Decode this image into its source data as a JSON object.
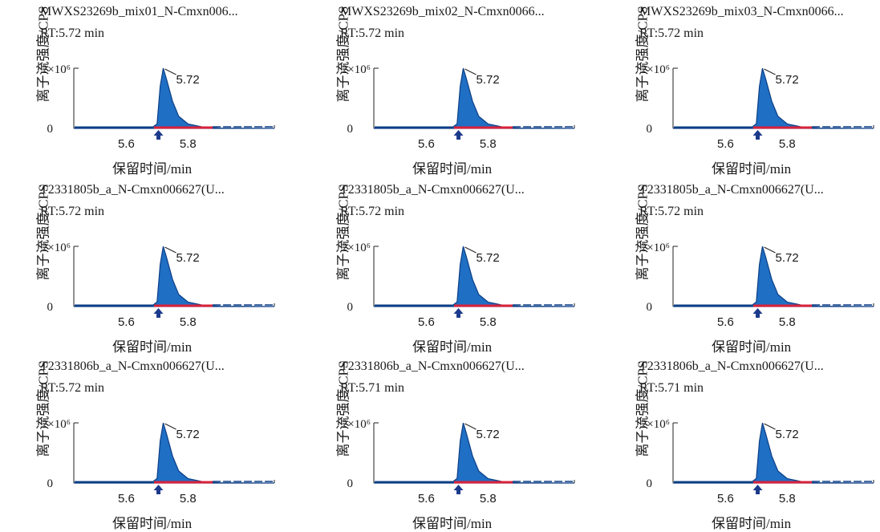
{
  "colors": {
    "peak_fill": "#1f6fc4",
    "peak_edge": "#0d3f86",
    "baseline": "#d9223a",
    "arrow": "#1b3a8c",
    "axis": "#222222"
  },
  "chart_data": [
    {
      "type": "area",
      "title": "MWXS23269b_mix01_N-Cmxn006...",
      "rt_label": "RT:5.72 min",
      "xlabel": "保留时间/min",
      "ylabel": "离子流强度/CPS",
      "x_ticks": [
        "5.6",
        "5.8"
      ],
      "y_ticks": [
        "0",
        "2×10⁶"
      ],
      "xlim": [
        5.43,
        6.08
      ],
      "ylim": [
        0,
        2000000
      ],
      "peak": {
        "apex_x": 5.72,
        "apex_y": 2000000,
        "label": "5.72"
      },
      "series": [
        {
          "x": [
            5.43,
            5.68,
            5.7,
            5.71,
            5.72,
            5.73,
            5.75,
            5.77,
            5.8,
            5.85,
            5.9,
            6.08
          ],
          "values": [
            0,
            0,
            150000,
            1400000,
            2000000,
            1650000,
            900000,
            400000,
            150000,
            40000,
            10000,
            0
          ]
        }
      ]
    },
    {
      "type": "area",
      "title": "MWXS23269b_mix02_N-Cmxn0066...",
      "rt_label": "RT:5.72 min",
      "xlabel": "保留时间/min",
      "ylabel": "离子流强度/CPS",
      "x_ticks": [
        "5.6",
        "5.8"
      ],
      "y_ticks": [
        "0",
        "2×10⁶"
      ],
      "xlim": [
        5.43,
        6.08
      ],
      "ylim": [
        0,
        2000000
      ],
      "peak": {
        "apex_x": 5.72,
        "apex_y": 2000000,
        "label": "5.72"
      },
      "series": [
        {
          "x": [
            5.43,
            5.68,
            5.7,
            5.71,
            5.72,
            5.73,
            5.75,
            5.77,
            5.8,
            5.85,
            5.9,
            6.08
          ],
          "values": [
            0,
            0,
            150000,
            1400000,
            2000000,
            1650000,
            900000,
            400000,
            150000,
            40000,
            10000,
            0
          ]
        }
      ]
    },
    {
      "type": "area",
      "title": "MWXS23269b_mix03_N-Cmxn0066...",
      "rt_label": "RT:5.72 min",
      "xlabel": "保留时间/min",
      "ylabel": "离子流强度/CPS",
      "x_ticks": [
        "5.6",
        "5.8"
      ],
      "y_ticks": [
        "0",
        "2×10⁶"
      ],
      "xlim": [
        5.43,
        6.08
      ],
      "ylim": [
        0,
        2000000
      ],
      "peak": {
        "apex_x": 5.72,
        "apex_y": 2000000,
        "label": "5.72"
      },
      "series": [
        {
          "x": [
            5.43,
            5.68,
            5.7,
            5.71,
            5.72,
            5.73,
            5.75,
            5.77,
            5.8,
            5.85,
            5.9,
            6.08
          ],
          "values": [
            0,
            0,
            150000,
            1400000,
            2000000,
            1650000,
            900000,
            400000,
            150000,
            40000,
            10000,
            0
          ]
        }
      ]
    },
    {
      "type": "area",
      "title": "T2331805b_a_N-Cmxn006627(U...",
      "rt_label": "RT:5.72 min",
      "xlabel": "保留时间/min",
      "ylabel": "离子流强度/CPS",
      "x_ticks": [
        "5.6",
        "5.8"
      ],
      "y_ticks": [
        "0",
        "2×10⁶"
      ],
      "xlim": [
        5.43,
        6.08
      ],
      "ylim": [
        0,
        2000000
      ],
      "peak": {
        "apex_x": 5.72,
        "apex_y": 2000000,
        "label": "5.72"
      },
      "series": [
        {
          "x": [
            5.43,
            5.68,
            5.7,
            5.71,
            5.72,
            5.73,
            5.75,
            5.77,
            5.8,
            5.85,
            5.9,
            6.08
          ],
          "values": [
            0,
            0,
            150000,
            1400000,
            2000000,
            1650000,
            900000,
            400000,
            150000,
            40000,
            10000,
            0
          ]
        }
      ]
    },
    {
      "type": "area",
      "title": "T2331805b_a_N-Cmxn006627(U...",
      "rt_label": "RT:5.72 min",
      "xlabel": "保留时间/min",
      "ylabel": "离子流强度/CPS",
      "x_ticks": [
        "5.6",
        "5.8"
      ],
      "y_ticks": [
        "0",
        "2×10⁶"
      ],
      "xlim": [
        5.43,
        6.08
      ],
      "ylim": [
        0,
        2000000
      ],
      "peak": {
        "apex_x": 5.72,
        "apex_y": 2000000,
        "label": "5.72"
      },
      "series": [
        {
          "x": [
            5.43,
            5.68,
            5.7,
            5.71,
            5.72,
            5.73,
            5.75,
            5.77,
            5.8,
            5.85,
            5.9,
            6.08
          ],
          "values": [
            0,
            0,
            150000,
            1400000,
            2000000,
            1650000,
            900000,
            400000,
            150000,
            40000,
            10000,
            0
          ]
        }
      ]
    },
    {
      "type": "area",
      "title": "T2331805b_a_N-Cmxn006627(U...",
      "rt_label": "RT:5.72 min",
      "xlabel": "保留时间/min",
      "ylabel": "离子流强度/CPS",
      "x_ticks": [
        "5.6",
        "5.8"
      ],
      "y_ticks": [
        "0",
        "2×10⁶"
      ],
      "xlim": [
        5.43,
        6.08
      ],
      "ylim": [
        0,
        2000000
      ],
      "peak": {
        "apex_x": 5.72,
        "apex_y": 2000000,
        "label": "5.72"
      },
      "series": [
        {
          "x": [
            5.43,
            5.68,
            5.7,
            5.71,
            5.72,
            5.73,
            5.75,
            5.77,
            5.8,
            5.85,
            5.9,
            6.08
          ],
          "values": [
            0,
            0,
            150000,
            1400000,
            2000000,
            1650000,
            900000,
            400000,
            150000,
            40000,
            10000,
            0
          ]
        }
      ]
    },
    {
      "type": "area",
      "title": "T2331806b_a_N-Cmxn006627(U...",
      "rt_label": "RT:5.72 min",
      "xlabel": "保留时间/min",
      "ylabel": "离子流强度/CPS",
      "x_ticks": [
        "5.6",
        "5.8"
      ],
      "y_ticks": [
        "0",
        "2×10⁶"
      ],
      "xlim": [
        5.43,
        6.08
      ],
      "ylim": [
        0,
        2000000
      ],
      "peak": {
        "apex_x": 5.72,
        "apex_y": 2000000,
        "label": "5.72"
      },
      "series": [
        {
          "x": [
            5.43,
            5.68,
            5.7,
            5.71,
            5.72,
            5.73,
            5.75,
            5.77,
            5.8,
            5.85,
            5.9,
            6.08
          ],
          "values": [
            0,
            0,
            150000,
            1400000,
            2000000,
            1650000,
            900000,
            400000,
            150000,
            40000,
            10000,
            0
          ]
        }
      ]
    },
    {
      "type": "area",
      "title": "T2331806b_a_N-Cmxn006627(U...",
      "rt_label": "RT:5.71 min",
      "xlabel": "保留时间/min",
      "ylabel": "离子流强度/CPS",
      "x_ticks": [
        "5.6",
        "5.8"
      ],
      "y_ticks": [
        "0",
        "2×10⁶"
      ],
      "xlim": [
        5.43,
        6.08
      ],
      "ylim": [
        0,
        2000000
      ],
      "peak": {
        "apex_x": 5.72,
        "apex_y": 2000000,
        "label": "5.72"
      },
      "series": [
        {
          "x": [
            5.43,
            5.68,
            5.7,
            5.71,
            5.72,
            5.73,
            5.75,
            5.77,
            5.8,
            5.85,
            5.9,
            6.08
          ],
          "values": [
            0,
            0,
            150000,
            1400000,
            2000000,
            1650000,
            900000,
            400000,
            150000,
            40000,
            10000,
            0
          ]
        }
      ]
    },
    {
      "type": "area",
      "title": "T2331806b_a_N-Cmxn006627(U...",
      "rt_label": "RT:5.71 min",
      "xlabel": "保留时间/min",
      "ylabel": "离子流强度/CPS",
      "x_ticks": [
        "5.6",
        "5.8"
      ],
      "y_ticks": [
        "0",
        "2×10⁶"
      ],
      "xlim": [
        5.43,
        6.08
      ],
      "ylim": [
        0,
        2000000
      ],
      "peak": {
        "apex_x": 5.72,
        "apex_y": 2000000,
        "label": "5.72"
      },
      "series": [
        {
          "x": [
            5.43,
            5.68,
            5.7,
            5.71,
            5.72,
            5.73,
            5.75,
            5.77,
            5.8,
            5.85,
            5.9,
            6.08
          ],
          "values": [
            0,
            0,
            150000,
            1400000,
            2000000,
            1650000,
            900000,
            400000,
            150000,
            40000,
            10000,
            0
          ]
        }
      ]
    }
  ]
}
